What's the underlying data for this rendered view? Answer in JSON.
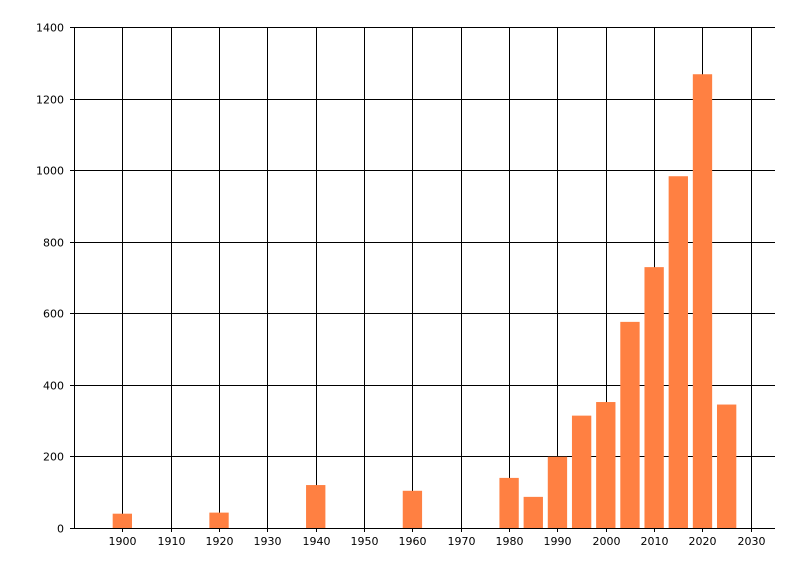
{
  "chart_data": {
    "type": "bar",
    "title": "",
    "xlabel": "",
    "ylabel": "",
    "x": [
      1900,
      1920,
      1940,
      1960,
      1980,
      1985,
      1990,
      1995,
      2000,
      2005,
      2010,
      2015,
      2020,
      2025
    ],
    "values": [
      40,
      43,
      120,
      104,
      140,
      87,
      199,
      314,
      352,
      576,
      729,
      983,
      1268,
      345
    ],
    "bar_width_years": 4,
    "xlim": [
      1890,
      2035
    ],
    "ylim": [
      0,
      1400
    ],
    "xticks": [
      1900,
      1910,
      1920,
      1930,
      1940,
      1950,
      1960,
      1970,
      1980,
      1990,
      2000,
      2010,
      2020,
      2030
    ],
    "yticks": [
      0,
      200,
      400,
      600,
      800,
      1000,
      1200,
      1400
    ],
    "grid": true,
    "bar_color": "#FF8042",
    "grid_color": "#000000"
  }
}
